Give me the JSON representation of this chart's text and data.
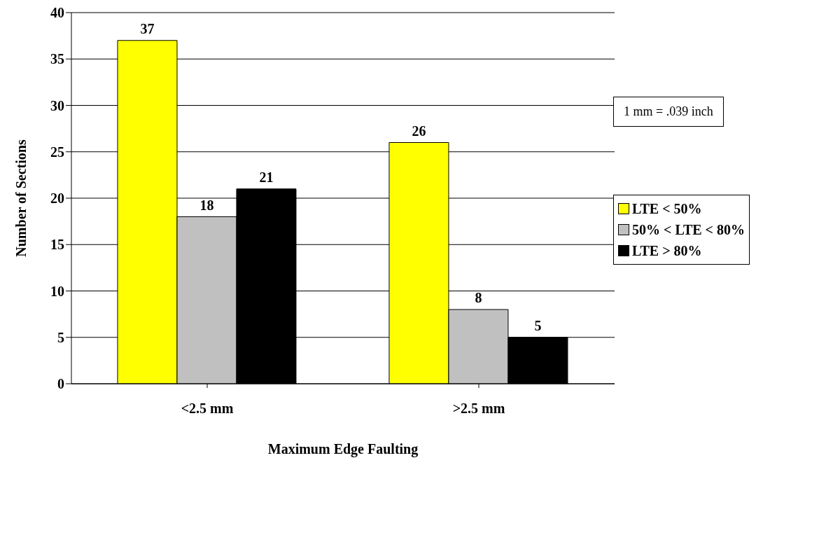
{
  "chart_data": {
    "type": "bar",
    "xlabel": "Maximum Edge Faulting",
    "ylabel": "Number of Sections",
    "categories": [
      "<2.5 mm",
      ">2.5 mm"
    ],
    "series": [
      {
        "name": "LTE < 50%",
        "color": "#ffff00",
        "values": [
          37,
          26
        ]
      },
      {
        "name": "50% < LTE < 80%",
        "color": "#c0c0c0",
        "values": [
          18,
          8
        ]
      },
      {
        "name": "LTE > 80%",
        "color": "#000000",
        "values": [
          21,
          5
        ]
      }
    ],
    "ylim": [
      0,
      40
    ],
    "yticks": [
      0,
      5,
      10,
      15,
      20,
      25,
      30,
      35,
      40
    ],
    "grid": "y",
    "legend": "right",
    "data_labels": true,
    "annotations": [
      "1 mm = .039 inch"
    ]
  }
}
